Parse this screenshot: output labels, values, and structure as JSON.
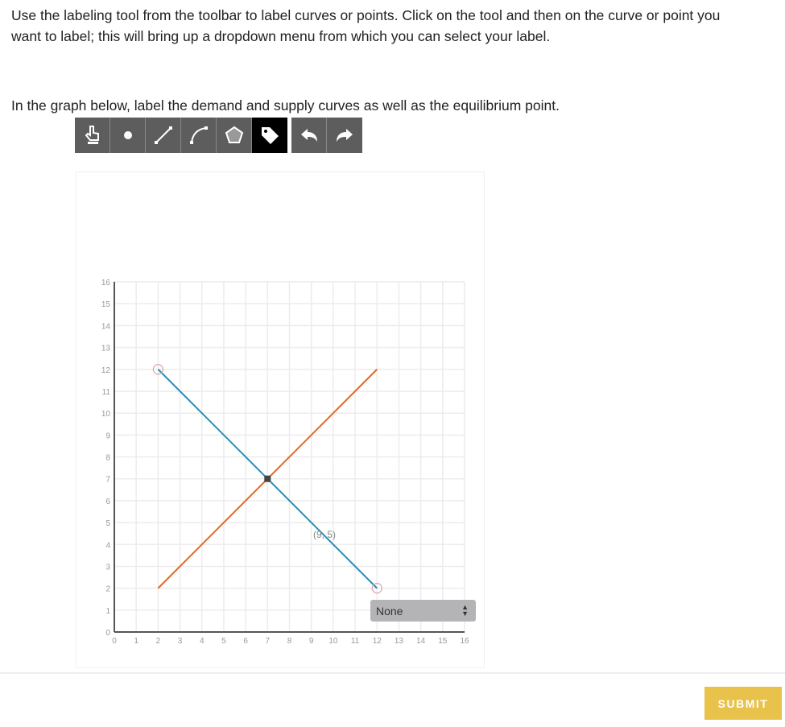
{
  "instructions": {
    "p1": "Use the labeling tool from the toolbar to label curves or points.  Click on the tool and then on the curve or point you want to label; this will bring up a dropdown menu from which you can select your label.",
    "p2": "In the graph below, label the demand and supply curves as well as the equilibrium point."
  },
  "toolbar": {
    "tools": [
      "hand-icon",
      "point-icon",
      "line-icon",
      "curve-icon",
      "polygon-icon",
      "label-tag-icon"
    ],
    "active": "label-tag-icon",
    "history": [
      "undo-icon",
      "redo-icon"
    ]
  },
  "graph": {
    "xlim": [
      0,
      16
    ],
    "ylim": [
      0,
      16
    ],
    "ticks": [
      "0",
      "1",
      "2",
      "3",
      "4",
      "5",
      "6",
      "7",
      "8",
      "9",
      "10",
      "11",
      "12",
      "13",
      "14",
      "15",
      "16"
    ],
    "lines": [
      {
        "id": "supply",
        "color": "#e2692a",
        "points": [
          [
            2,
            2
          ],
          [
            12,
            12
          ]
        ]
      },
      {
        "id": "demand",
        "color": "#2a8db8",
        "points": [
          [
            2,
            12
          ],
          [
            12,
            2
          ]
        ]
      }
    ],
    "open_points": [
      [
        2,
        12
      ],
      [
        12,
        2
      ]
    ],
    "equilibrium": [
      7,
      7
    ],
    "hover_label": "(9, 5)",
    "hover_label_pos": [
      9.6,
      4.3
    ]
  },
  "label_dropdown": {
    "selected": "None"
  },
  "submit_label": "SUBMIT"
}
